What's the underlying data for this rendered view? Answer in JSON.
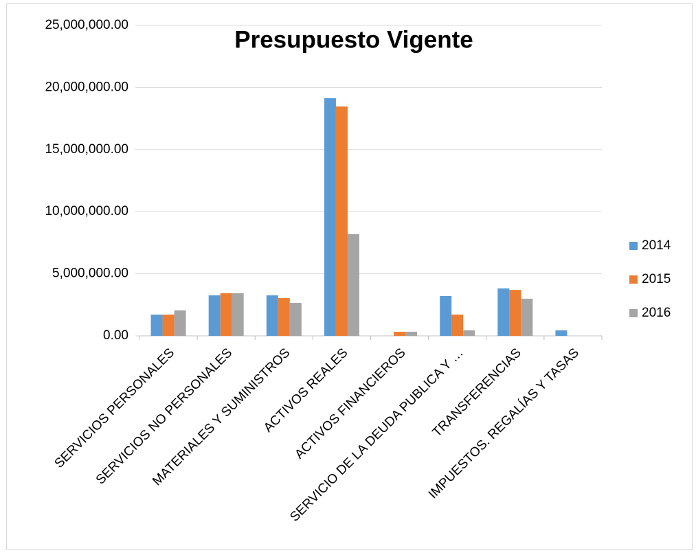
{
  "chart_data": {
    "type": "bar",
    "title": "Presupuesto Vigente",
    "categories": [
      "SERVICIOS PERSONALES",
      "SERVICIOS NO PERSONALES",
      "MATERIALES Y SUMINISTROS",
      "ACTIVOS REALES",
      "ACTIVOS FINANCIEROS",
      "SERVICIO DE LA DEUDA PUBLICA Y …",
      "TRANSFERENCIAS",
      "IMPUESTOS. REGALÍAS Y TASAS"
    ],
    "series": [
      {
        "name": "2014",
        "color": "#5b9bd5",
        "values": [
          1710000,
          3260000,
          3260000,
          19140000,
          0,
          3210000,
          3820000,
          440000
        ]
      },
      {
        "name": "2015",
        "color": "#ed7d31",
        "values": [
          1710000,
          3430000,
          3040000,
          18470000,
          330000,
          1710000,
          3700000,
          0
        ]
      },
      {
        "name": "2016",
        "color": "#a5a5a5",
        "values": [
          2050000,
          3430000,
          2650000,
          8190000,
          330000,
          440000,
          2990000,
          0
        ]
      }
    ],
    "ylim": [
      0,
      25000000
    ],
    "yticks": [
      {
        "value": 0,
        "label": "0.00"
      },
      {
        "value": 5000000,
        "label": "5,000,000.00"
      },
      {
        "value": 10000000,
        "label": "10,000,000.00"
      },
      {
        "value": 15000000,
        "label": "15,000,000.00"
      },
      {
        "value": 20000000,
        "label": "20,000,000.00"
      },
      {
        "value": 25000000,
        "label": "25,000,000.00"
      }
    ],
    "grid": true,
    "legend": "right"
  }
}
